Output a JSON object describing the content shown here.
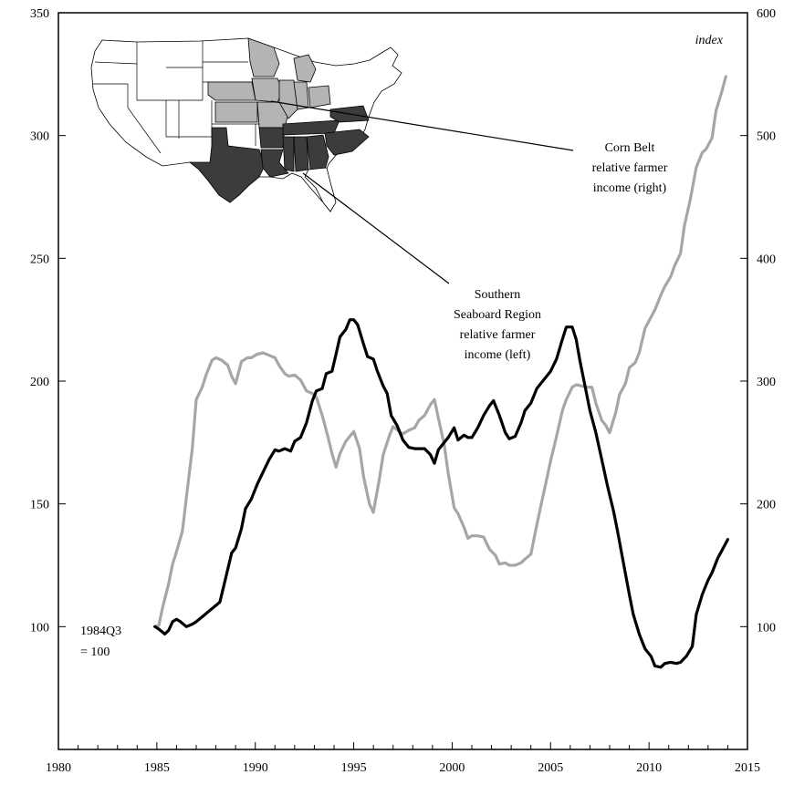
{
  "chart_data": {
    "type": "line",
    "annotations": {
      "index_label": "index",
      "base_note_line1": "1984Q3",
      "base_note_line2": "= 100",
      "corn_belt_line1": "Corn Belt",
      "corn_belt_line2": "relative farmer",
      "corn_belt_line3": "income (right)",
      "southern_line1": "Southern",
      "southern_line2": "Seaboard Region",
      "southern_line3": "relative farmer",
      "southern_line4": "income (left)"
    },
    "x_axis": {
      "min": 1980,
      "max": 2015,
      "ticks": [
        "1980",
        "1985",
        "1990",
        "1995",
        "2000",
        "2005",
        "2010",
        "2015"
      ]
    },
    "y_left": {
      "min": 50,
      "max": 350,
      "ticks": [
        "100",
        "150",
        "200",
        "250",
        "300",
        "350"
      ]
    },
    "y_right": {
      "min": 0,
      "max": 600,
      "ticks": [
        "100",
        "200",
        "300",
        "400",
        "500",
        "600"
      ]
    },
    "grid": false,
    "series": [
      {
        "id": "southern",
        "axis": "left",
        "color": "#000000",
        "points": [
          [
            1984.9,
            100
          ],
          [
            1985.1,
            99
          ],
          [
            1985.4,
            97
          ],
          [
            1985.6,
            98.5
          ],
          [
            1985.8,
            102
          ],
          [
            1986.0,
            103
          ],
          [
            1986.2,
            102
          ],
          [
            1986.5,
            100
          ],
          [
            1986.8,
            101
          ],
          [
            1987.0,
            102
          ],
          [
            1987.3,
            104
          ],
          [
            1987.6,
            106
          ],
          [
            1987.9,
            108
          ],
          [
            1988.2,
            110
          ],
          [
            1988.5,
            120
          ],
          [
            1988.8,
            130
          ],
          [
            1989.0,
            132
          ],
          [
            1989.3,
            140
          ],
          [
            1989.5,
            148
          ],
          [
            1989.8,
            152
          ],
          [
            1990.1,
            158
          ],
          [
            1990.4,
            163
          ],
          [
            1990.7,
            168
          ],
          [
            1991.0,
            172
          ],
          [
            1991.2,
            171.5
          ],
          [
            1991.5,
            172.5
          ],
          [
            1991.8,
            171.5
          ],
          [
            1992.0,
            175.5
          ],
          [
            1992.3,
            177
          ],
          [
            1992.6,
            183
          ],
          [
            1992.9,
            192
          ],
          [
            1993.1,
            196
          ],
          [
            1993.4,
            197
          ],
          [
            1993.6,
            203
          ],
          [
            1993.9,
            204
          ],
          [
            1994.1,
            211
          ],
          [
            1994.3,
            218
          ],
          [
            1994.6,
            221
          ],
          [
            1994.8,
            225
          ],
          [
            1995.0,
            225
          ],
          [
            1995.2,
            223
          ],
          [
            1995.5,
            215
          ],
          [
            1995.7,
            210
          ],
          [
            1996.0,
            209
          ],
          [
            1996.2,
            204
          ],
          [
            1996.5,
            198
          ],
          [
            1996.7,
            195
          ],
          [
            1996.9,
            186
          ],
          [
            1997.2,
            182
          ],
          [
            1997.5,
            176
          ],
          [
            1997.8,
            173
          ],
          [
            1998.1,
            172.5
          ],
          [
            1998.4,
            172.5
          ],
          [
            1998.6,
            172.5
          ],
          [
            1998.9,
            170
          ],
          [
            1999.1,
            166.5
          ],
          [
            1999.3,
            172
          ],
          [
            1999.6,
            175
          ],
          [
            1999.8,
            177
          ],
          [
            2000.1,
            181
          ],
          [
            2000.3,
            176
          ],
          [
            2000.6,
            178
          ],
          [
            2000.8,
            177
          ],
          [
            2001.0,
            177
          ],
          [
            2001.3,
            181
          ],
          [
            2001.6,
            186
          ],
          [
            2001.9,
            190
          ],
          [
            2002.1,
            192
          ],
          [
            2002.4,
            186
          ],
          [
            2002.7,
            179
          ],
          [
            2002.9,
            176.5
          ],
          [
            2003.2,
            177.5
          ],
          [
            2003.5,
            183
          ],
          [
            2003.7,
            188
          ],
          [
            2004.0,
            191
          ],
          [
            2004.3,
            197
          ],
          [
            2004.5,
            199
          ],
          [
            2004.8,
            202
          ],
          [
            2005.0,
            204
          ],
          [
            2005.3,
            209
          ],
          [
            2005.6,
            217
          ],
          [
            2005.8,
            222
          ],
          [
            2006.1,
            222
          ],
          [
            2006.3,
            217
          ],
          [
            2006.5,
            208
          ],
          [
            2006.8,
            196
          ],
          [
            2007.0,
            188
          ],
          [
            2007.3,
            179
          ],
          [
            2007.6,
            168
          ],
          [
            2007.9,
            157
          ],
          [
            2008.2,
            147
          ],
          [
            2008.4,
            139
          ],
          [
            2008.7,
            126
          ],
          [
            2009.0,
            113
          ],
          [
            2009.2,
            105
          ],
          [
            2009.5,
            97
          ],
          [
            2009.8,
            91
          ],
          [
            2010.1,
            88
          ],
          [
            2010.3,
            84
          ],
          [
            2010.6,
            83.5
          ],
          [
            2010.8,
            85
          ],
          [
            2011.1,
            85.5
          ],
          [
            2011.4,
            85
          ],
          [
            2011.6,
            85.5
          ],
          [
            2011.9,
            88
          ],
          [
            2012.2,
            92
          ],
          [
            2012.4,
            105
          ],
          [
            2012.7,
            113
          ],
          [
            2013.0,
            119
          ],
          [
            2013.2,
            122
          ],
          [
            2013.5,
            128
          ],
          [
            2013.7,
            131
          ],
          [
            2014.0,
            135.5
          ]
        ]
      },
      {
        "id": "corn_belt",
        "axis": "right",
        "color": "#a6a6a6",
        "points": [
          [
            1984.9,
            100
          ],
          [
            1985.1,
            101
          ],
          [
            1985.3,
            116
          ],
          [
            1985.6,
            135
          ],
          [
            1985.8,
            151
          ],
          [
            1986.0,
            161
          ],
          [
            1986.3,
            178
          ],
          [
            1986.5,
            205
          ],
          [
            1986.8,
            245
          ],
          [
            1987.0,
            285
          ],
          [
            1987.3,
            295
          ],
          [
            1987.5,
            305
          ],
          [
            1987.8,
            317
          ],
          [
            1988.0,
            319
          ],
          [
            1988.3,
            317
          ],
          [
            1988.6,
            313
          ],
          [
            1988.8,
            304
          ],
          [
            1989.0,
            298
          ],
          [
            1989.3,
            316
          ],
          [
            1989.6,
            319
          ],
          [
            1989.8,
            319
          ],
          [
            1990.1,
            322
          ],
          [
            1990.4,
            323
          ],
          [
            1990.7,
            321
          ],
          [
            1991.0,
            319
          ],
          [
            1991.2,
            313
          ],
          [
            1991.5,
            306
          ],
          [
            1991.7,
            304
          ],
          [
            1992.0,
            305
          ],
          [
            1992.3,
            301
          ],
          [
            1992.6,
            292
          ],
          [
            1992.9,
            290
          ],
          [
            1993.1,
            287
          ],
          [
            1993.4,
            272
          ],
          [
            1993.7,
            254
          ],
          [
            1993.9,
            241
          ],
          [
            1994.1,
            230
          ],
          [
            1994.3,
            241
          ],
          [
            1994.6,
            251
          ],
          [
            1994.8,
            255
          ],
          [
            1995.0,
            259
          ],
          [
            1995.3,
            245
          ],
          [
            1995.5,
            222
          ],
          [
            1995.8,
            200
          ],
          [
            1996.0,
            193
          ],
          [
            1996.3,
            220
          ],
          [
            1996.5,
            240
          ],
          [
            1996.8,
            255
          ],
          [
            1997.0,
            263
          ],
          [
            1997.3,
            259
          ],
          [
            1997.5,
            257
          ],
          [
            1997.8,
            260
          ],
          [
            1998.1,
            262
          ],
          [
            1998.3,
            268
          ],
          [
            1998.6,
            272
          ],
          [
            1998.9,
            281
          ],
          [
            1999.1,
            285
          ],
          [
            1999.3,
            270
          ],
          [
            1999.6,
            248
          ],
          [
            1999.8,
            225
          ],
          [
            2000.1,
            197
          ],
          [
            2000.3,
            192
          ],
          [
            2000.6,
            181
          ],
          [
            2000.8,
            172
          ],
          [
            2001.0,
            174
          ],
          [
            2001.3,
            174
          ],
          [
            2001.6,
            173
          ],
          [
            2001.9,
            163
          ],
          [
            2002.2,
            158
          ],
          [
            2002.4,
            151
          ],
          [
            2002.7,
            152
          ],
          [
            2002.9,
            150
          ],
          [
            2003.2,
            150
          ],
          [
            2003.5,
            152
          ],
          [
            2003.7,
            155
          ],
          [
            2004.0,
            159
          ],
          [
            2004.3,
            183
          ],
          [
            2004.5,
            198
          ],
          [
            2004.8,
            220
          ],
          [
            2005.0,
            235
          ],
          [
            2005.3,
            255
          ],
          [
            2005.6,
            276
          ],
          [
            2005.8,
            285
          ],
          [
            2006.1,
            295
          ],
          [
            2006.3,
            297
          ],
          [
            2006.6,
            296
          ],
          [
            2006.8,
            295
          ],
          [
            2007.1,
            295
          ],
          [
            2007.3,
            282
          ],
          [
            2007.6,
            268
          ],
          [
            2007.8,
            264
          ],
          [
            2008.0,
            258
          ],
          [
            2008.3,
            274
          ],
          [
            2008.5,
            289
          ],
          [
            2008.8,
            298
          ],
          [
            2009.0,
            311
          ],
          [
            2009.3,
            315
          ],
          [
            2009.5,
            323
          ],
          [
            2009.8,
            343
          ],
          [
            2010.0,
            349
          ],
          [
            2010.3,
            358
          ],
          [
            2010.6,
            370
          ],
          [
            2010.8,
            377
          ],
          [
            2011.1,
            385
          ],
          [
            2011.3,
            394
          ],
          [
            2011.6,
            404
          ],
          [
            2011.8,
            427
          ],
          [
            2012.1,
            448
          ],
          [
            2012.4,
            474
          ],
          [
            2012.7,
            486
          ],
          [
            2012.9,
            489
          ],
          [
            2013.2,
            498
          ],
          [
            2013.4,
            520
          ],
          [
            2013.7,
            536
          ],
          [
            2013.9,
            548
          ]
        ]
      }
    ]
  },
  "map": {
    "colors": {
      "light": "#b4b4b4",
      "dark": "#3c3c3c",
      "white": "#ffffff"
    }
  }
}
